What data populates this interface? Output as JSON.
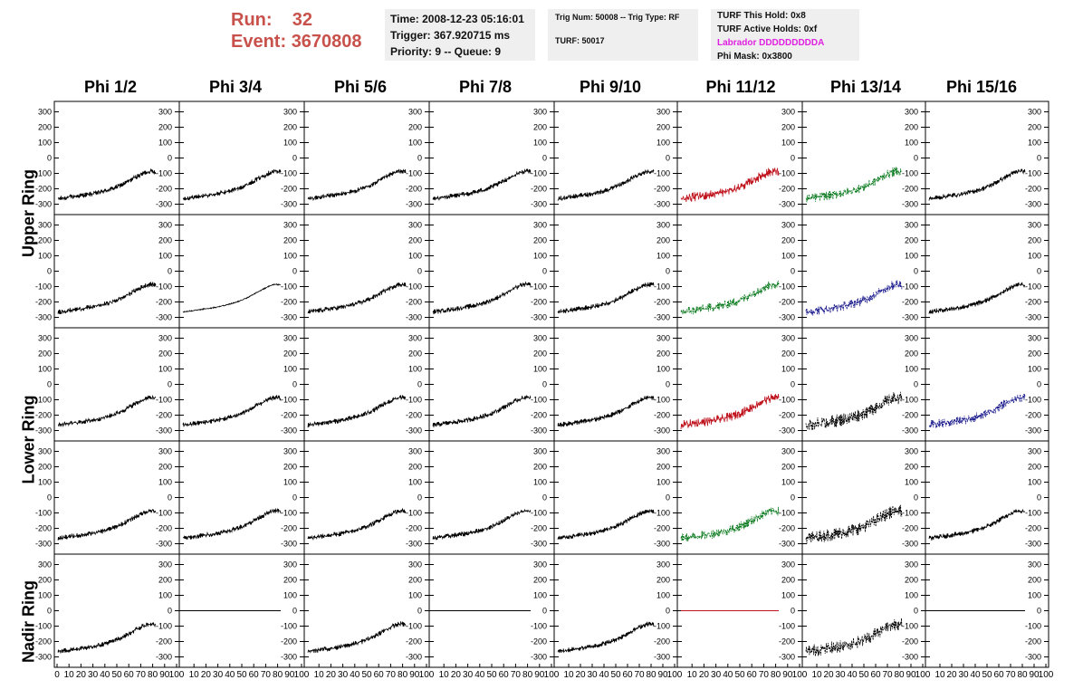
{
  "header": {
    "run_label": "Run:",
    "run_value": "32",
    "event_label": "Event:",
    "event_value": "3670808",
    "time": "Time: 2008-12-23 05:16:01",
    "trigger": "Trigger: 367.920715 ms",
    "priority": "Priority: 9 -- Queue: 9",
    "trig_num": "Trig Num: 50008 -- Trig Type: RF",
    "turf": "TURF: 50017",
    "turf_this_hold": "TURF This Hold: 0x8",
    "turf_active_holds": "TURF Active Holds: 0xf",
    "labrador": "Labrador DDDDDDDDDA",
    "phi_mask": "Phi Mask: 0x3800",
    "colors": {
      "run": "#c8524b",
      "labrador": "#e020e0"
    }
  },
  "columns": [
    "Phi 1/2",
    "Phi 3/4",
    "Phi 5/6",
    "Phi 7/8",
    "Phi 9/10",
    "Phi 11/12",
    "Phi 13/14",
    "Phi 15/16"
  ],
  "ring_labels": [
    {
      "text": "Upper Ring"
    },
    {
      "text": "Lower Ring"
    },
    {
      "text": "Nadir Ring"
    }
  ],
  "chart_data": {
    "type": "line",
    "y_ticks": [
      300,
      200,
      100,
      0,
      -100,
      -200,
      -300
    ],
    "ylim": [
      -350,
      350
    ],
    "x_ticks_first": [
      "0",
      "10",
      "20",
      "30",
      "40",
      "50",
      "60",
      "70",
      "80",
      "90",
      "100"
    ],
    "x_ticks_other": [
      "10",
      "20",
      "30",
      "40",
      "50",
      "60",
      "70",
      "80",
      "90",
      "100"
    ],
    "xlim": [
      0,
      100
    ],
    "grid": false,
    "trace_colors": {
      "black": "#000000",
      "red": "#c0141e",
      "green": "#0a7a1e",
      "blue": "#1a1a8c"
    },
    "series_shape": {
      "description": "rising waveform from about -260 at x=0 to about -90 at x=85, flattening near the end",
      "x": [
        0,
        10,
        20,
        30,
        40,
        50,
        60,
        70,
        80,
        85,
        90
      ],
      "y": [
        -265,
        -255,
        -245,
        -235,
        -220,
        -200,
        -170,
        -130,
        -95,
        -85,
        -90
      ]
    },
    "panels": [
      [
        "black",
        "black",
        "black",
        "black",
        "black",
        "red",
        "green",
        "black"
      ],
      [
        "black",
        "black-smooth",
        "black",
        "black",
        "black",
        "green",
        "blue",
        "black"
      ],
      [
        "black",
        "black",
        "black",
        "black",
        "black",
        "red",
        "black-sparse",
        "blue"
      ],
      [
        "black",
        "black",
        "black",
        "black",
        "black",
        "green",
        "black-sparse",
        "black"
      ],
      [
        "black",
        "flat",
        "black",
        "flat",
        "black",
        "flat-red",
        "black-sparse",
        "flat"
      ]
    ]
  }
}
